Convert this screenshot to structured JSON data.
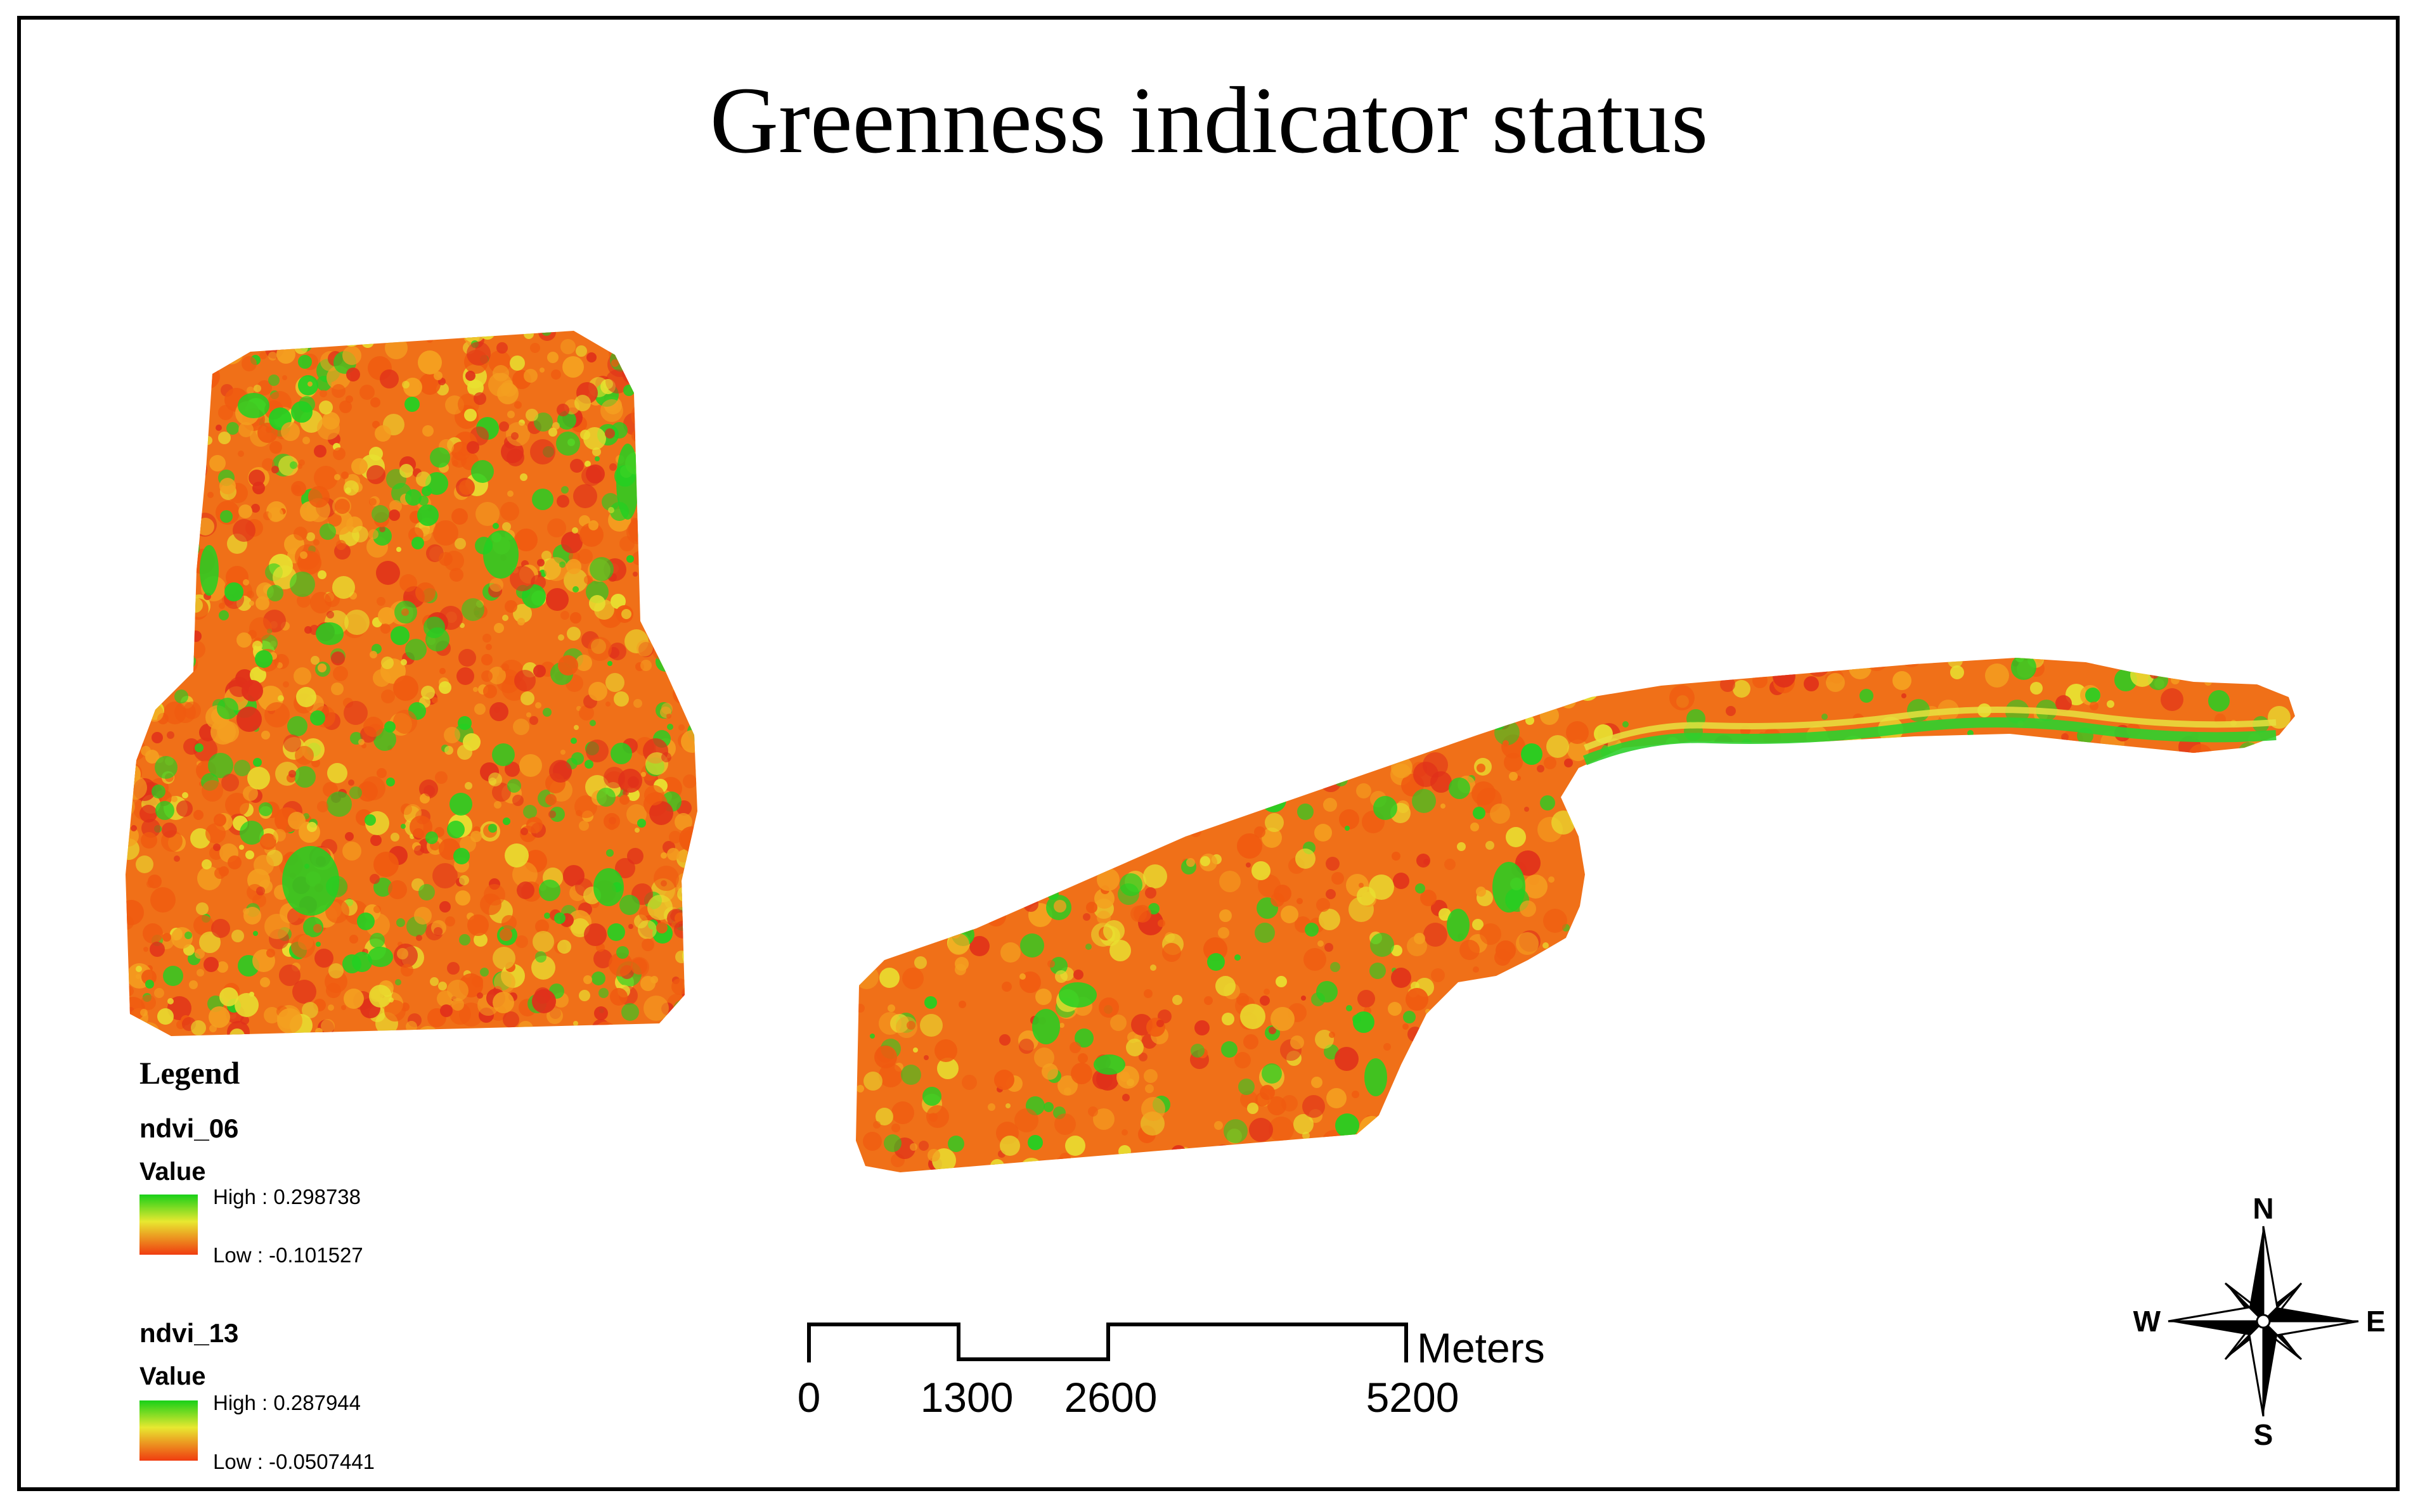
{
  "title": "Greenness indicator status",
  "colors": {
    "high": "#22d022",
    "mid": "#e8e030",
    "low": "#f05a10",
    "base_fill": "#f07018"
  },
  "legend": {
    "heading": "Legend",
    "layers": [
      {
        "name": "ndvi_06",
        "value_label": "Value",
        "high_label": "High : 0.298738",
        "low_label": "Low : -0.101527"
      },
      {
        "name": "ndvi_13",
        "value_label": "Value",
        "high_label": "High : 0.287944",
        "low_label": "Low : -0.0507441"
      }
    ]
  },
  "scale_bar": {
    "unit": "Meters",
    "ticks": [
      "0",
      "1300",
      "2600",
      "5200"
    ]
  },
  "north_arrow": {
    "n": "N",
    "s": "S",
    "e": "E",
    "w": "W"
  }
}
